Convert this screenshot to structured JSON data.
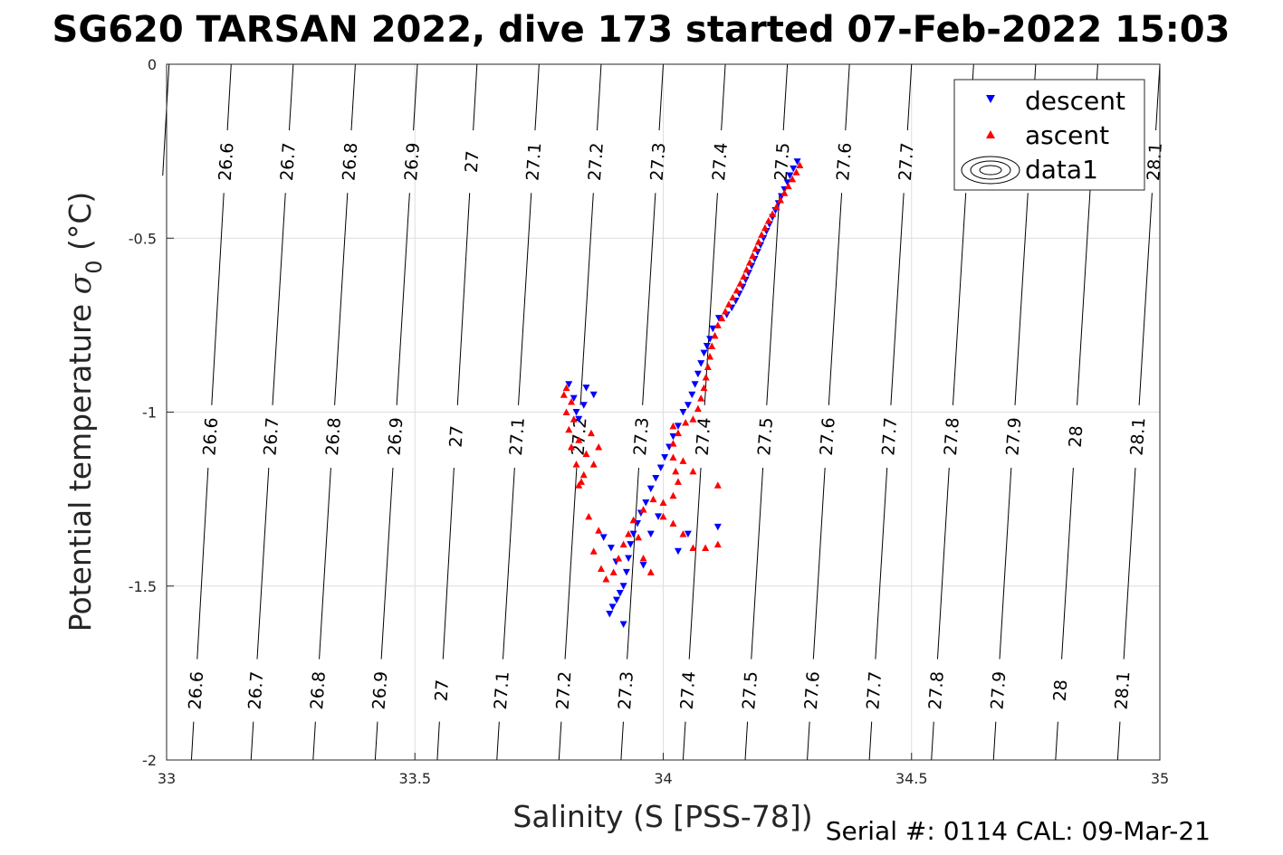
{
  "title": "SG620 TARSAN 2022, dive 173 started 07-Feb-2022 15:03",
  "footer": "Serial #: 0114  CAL: 09-Mar-21",
  "chart_data": {
    "type": "scatter",
    "xlabel": "Salinity (S [PSS-78])",
    "ylabel": {
      "main": "Potential temperature ",
      "sym": "σ",
      "sub": "0",
      "unit": " (°C)"
    },
    "xlim": [
      33,
      35
    ],
    "ylim": [
      -2,
      0
    ],
    "xticks": [
      "33",
      "33.5",
      "34",
      "34.5",
      "35"
    ],
    "yticks": [
      "0",
      "-0.5",
      "-1",
      "-1.5",
      "-2"
    ],
    "grid": true,
    "legend": {
      "position": "top-right",
      "entries": [
        {
          "label": "descent",
          "color": "#0000ff",
          "marker": "triangle-down"
        },
        {
          "label": "ascent",
          "color": "#ff0000",
          "marker": "triangle-up"
        },
        {
          "label": "data1",
          "color": "#000000",
          "marker": "contour"
        }
      ]
    },
    "contours": {
      "levels": [
        "26.6",
        "26.7",
        "26.8",
        "26.9",
        "27",
        "27.1",
        "27.2",
        "27.3",
        "27.4",
        "27.5",
        "27.6",
        "27.7",
        "27.8",
        "27.9",
        "28",
        "28.1"
      ],
      "lines": [
        {
          "level": 26.5,
          "s_top": 33.005,
          "s_bottom": null
        },
        {
          "level": 26.6,
          "s_top": 33.13,
          "s_bottom": 33.05
        },
        {
          "level": 26.7,
          "s_top": 33.255,
          "s_bottom": 33.17
        },
        {
          "level": 26.8,
          "s_top": 33.38,
          "s_bottom": 33.295
        },
        {
          "level": 26.9,
          "s_top": 33.505,
          "s_bottom": 33.42
        },
        {
          "level": 27.0,
          "s_top": 33.625,
          "s_bottom": 33.545
        },
        {
          "level": 27.1,
          "s_top": 33.75,
          "s_bottom": 33.665
        },
        {
          "level": 27.2,
          "s_top": 33.875,
          "s_bottom": 33.79
        },
        {
          "level": 27.3,
          "s_top": 34.0,
          "s_bottom": 33.915
        },
        {
          "level": 27.4,
          "s_top": 34.125,
          "s_bottom": 34.04
        },
        {
          "level": 27.5,
          "s_top": 34.25,
          "s_bottom": 34.165
        },
        {
          "level": 27.6,
          "s_top": 34.375,
          "s_bottom": 34.29
        },
        {
          "level": 27.7,
          "s_top": 34.5,
          "s_bottom": 34.415
        },
        {
          "level": 27.8,
          "s_top": 34.625,
          "s_bottom": 34.54
        },
        {
          "level": 27.9,
          "s_top": 34.75,
          "s_bottom": 34.665
        },
        {
          "level": 28.0,
          "s_top": 34.875,
          "s_bottom": 34.79
        },
        {
          "level": 28.1,
          "s_top": 35.0,
          "s_bottom": 34.915
        }
      ]
    },
    "series": [
      {
        "name": "descent",
        "color": "#0000ff",
        "marker": "triangle-down",
        "points": [
          [
            34.27,
            -0.28
          ],
          [
            34.262,
            -0.3
          ],
          [
            34.255,
            -0.32
          ],
          [
            34.25,
            -0.34
          ],
          [
            34.244,
            -0.36
          ],
          [
            34.238,
            -0.38
          ],
          [
            34.232,
            -0.4
          ],
          [
            34.226,
            -0.42
          ],
          [
            34.22,
            -0.44
          ],
          [
            34.214,
            -0.46
          ],
          [
            34.208,
            -0.48
          ],
          [
            34.202,
            -0.5
          ],
          [
            34.196,
            -0.52
          ],
          [
            34.19,
            -0.54
          ],
          [
            34.184,
            -0.56
          ],
          [
            34.178,
            -0.58
          ],
          [
            34.172,
            -0.6
          ],
          [
            34.166,
            -0.62
          ],
          [
            34.16,
            -0.64
          ],
          [
            34.153,
            -0.66
          ],
          [
            34.146,
            -0.68
          ],
          [
            34.138,
            -0.7
          ],
          [
            34.128,
            -0.72
          ],
          [
            34.112,
            -0.73
          ],
          [
            34.1,
            -0.76
          ],
          [
            34.094,
            -0.79
          ],
          [
            34.088,
            -0.81
          ],
          [
            34.082,
            -0.83
          ],
          [
            34.076,
            -0.86
          ],
          [
            34.07,
            -0.89
          ],
          [
            34.064,
            -0.92
          ],
          [
            34.058,
            -0.95
          ],
          [
            34.05,
            -0.98
          ],
          [
            34.04,
            -1.0
          ],
          [
            34.03,
            -1.04
          ],
          [
            34.02,
            -1.07
          ],
          [
            34.012,
            -1.1
          ],
          [
            34.003,
            -1.13
          ],
          [
            33.995,
            -1.16
          ],
          [
            33.985,
            -1.19
          ],
          [
            33.975,
            -1.22
          ],
          [
            33.965,
            -1.26
          ],
          [
            33.955,
            -1.29
          ],
          [
            33.948,
            -1.32
          ],
          [
            33.94,
            -1.35
          ],
          [
            33.934,
            -1.38
          ],
          [
            33.93,
            -1.42
          ],
          [
            33.926,
            -1.46
          ],
          [
            33.92,
            -1.5
          ],
          [
            33.913,
            -1.52
          ],
          [
            33.906,
            -1.54
          ],
          [
            33.898,
            -1.56
          ],
          [
            33.892,
            -1.58
          ],
          [
            33.92,
            -1.61
          ],
          [
            33.895,
            -1.39
          ],
          [
            33.905,
            -1.43
          ],
          [
            33.975,
            -1.35
          ],
          [
            33.99,
            -1.3
          ],
          [
            34.03,
            -1.4
          ],
          [
            34.05,
            -1.35
          ],
          [
            34.11,
            -1.33
          ],
          [
            33.96,
            -1.44
          ],
          [
            33.88,
            -1.36
          ],
          [
            33.845,
            -0.93
          ],
          [
            33.84,
            -0.98
          ],
          [
            33.86,
            -0.95
          ],
          [
            33.81,
            -0.92
          ],
          [
            33.82,
            -0.96
          ],
          [
            33.825,
            -1.0
          ],
          [
            33.83,
            -1.02
          ]
        ]
      },
      {
        "name": "ascent",
        "color": "#ff0000",
        "marker": "triangle-up",
        "points": [
          [
            34.275,
            -0.29
          ],
          [
            34.268,
            -0.31
          ],
          [
            34.26,
            -0.33
          ],
          [
            34.252,
            -0.35
          ],
          [
            34.244,
            -0.37
          ],
          [
            34.236,
            -0.39
          ],
          [
            34.228,
            -0.41
          ],
          [
            34.22,
            -0.43
          ],
          [
            34.212,
            -0.45
          ],
          [
            34.205,
            -0.47
          ],
          [
            34.198,
            -0.49
          ],
          [
            34.192,
            -0.51
          ],
          [
            34.186,
            -0.53
          ],
          [
            34.18,
            -0.55
          ],
          [
            34.174,
            -0.57
          ],
          [
            34.168,
            -0.59
          ],
          [
            34.162,
            -0.61
          ],
          [
            34.155,
            -0.63
          ],
          [
            34.148,
            -0.65
          ],
          [
            34.14,
            -0.67
          ],
          [
            34.132,
            -0.69
          ],
          [
            34.125,
            -0.71
          ],
          [
            34.118,
            -0.73
          ],
          [
            34.11,
            -0.75
          ],
          [
            34.104,
            -0.78
          ],
          [
            34.098,
            -0.81
          ],
          [
            34.094,
            -0.84
          ],
          [
            34.09,
            -0.87
          ],
          [
            34.086,
            -0.9
          ],
          [
            34.082,
            -0.93
          ],
          [
            34.076,
            -0.96
          ],
          [
            34.07,
            -0.99
          ],
          [
            34.06,
            -1.02
          ],
          [
            34.045,
            -1.03
          ],
          [
            34.03,
            -1.06
          ],
          [
            34.02,
            -1.09
          ],
          [
            34.02,
            -1.13
          ],
          [
            34.025,
            -1.17
          ],
          [
            34.03,
            -1.2
          ],
          [
            34.02,
            -1.24
          ],
          [
            34.0,
            -1.26
          ],
          [
            33.98,
            -1.25
          ],
          [
            33.96,
            -1.28
          ],
          [
            33.94,
            -1.31
          ],
          [
            33.93,
            -1.35
          ],
          [
            33.92,
            -1.38
          ],
          [
            33.91,
            -1.42
          ],
          [
            33.9,
            -1.46
          ],
          [
            33.885,
            -1.48
          ],
          [
            33.875,
            -1.45
          ],
          [
            33.86,
            -1.4
          ],
          [
            33.87,
            -1.34
          ],
          [
            33.85,
            -1.3
          ],
          [
            33.835,
            -1.2
          ],
          [
            33.825,
            -1.15
          ],
          [
            33.815,
            -1.1
          ],
          [
            33.81,
            -1.05
          ],
          [
            33.805,
            -1.0
          ],
          [
            33.8,
            -0.95
          ],
          [
            33.805,
            -0.93
          ],
          [
            33.815,
            -0.97
          ],
          [
            33.82,
            -1.02
          ],
          [
            33.83,
            -1.08
          ],
          [
            33.845,
            -1.12
          ],
          [
            33.86,
            -1.15
          ],
          [
            33.87,
            -1.1
          ],
          [
            33.855,
            -1.06
          ],
          [
            33.84,
            -1.18
          ],
          [
            33.83,
            -1.21
          ],
          [
            34.04,
            -1.35
          ],
          [
            34.06,
            -1.39
          ],
          [
            34.085,
            -1.39
          ],
          [
            34.11,
            -1.38
          ],
          [
            34.11,
            -1.21
          ],
          [
            34.06,
            -1.17
          ],
          [
            34.04,
            -1.14
          ],
          [
            34.02,
            -1.04
          ],
          [
            33.95,
            -1.36
          ],
          [
            33.96,
            -1.42
          ],
          [
            33.975,
            -1.46
          ],
          [
            34.0,
            -1.3
          ],
          [
            34.02,
            -1.32
          ]
        ]
      }
    ]
  }
}
